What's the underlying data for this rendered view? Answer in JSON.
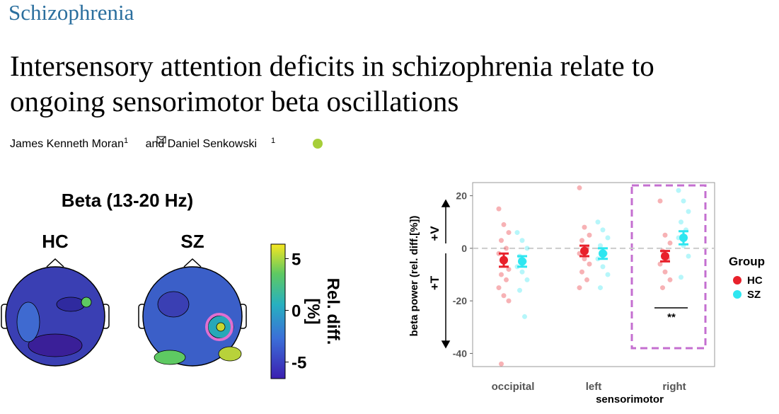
{
  "journal": "Schizophrenia",
  "title_lines": [
    "Intersensory attention deficits in schizophrenia relate to",
    "ongoing sensorimotor beta oscillations"
  ],
  "authors": [
    {
      "name": "James Kenneth Moran",
      "affiliation": "1"
    },
    {
      "name": "Daniel Senkowski",
      "affiliation": "1"
    }
  ],
  "author_connector": "and",
  "topomap": {
    "title": "Beta (13-20 Hz)",
    "panels": [
      "HC",
      "SZ"
    ],
    "colorbar": {
      "lim": [
        -6.6,
        6.4
      ],
      "ticks": [
        5,
        0,
        -5
      ],
      "label_lines": [
        "Rel. diff.",
        "[%]"
      ]
    }
  },
  "chart_data": {
    "type": "strip",
    "categories": [
      "occipital",
      "left",
      "right"
    ],
    "x_group_label": "sensorimotor",
    "y_label": "beta power (rel. diff.[%])",
    "ylim": [
      -45,
      25
    ],
    "yticks": [
      20,
      0,
      -20,
      -40
    ],
    "zero_line": true,
    "annotations": [
      "+V",
      "+T",
      "**"
    ],
    "legend_title": "Group",
    "series": [
      {
        "name": "HC",
        "color": "#e8212b",
        "values": [
          -4.5,
          -1,
          -3
        ],
        "errors": [
          2.5,
          2,
          2
        ],
        "points": [
          [
            15,
            9,
            6,
            3,
            0,
            -2,
            -5,
            -8,
            -10,
            -12,
            -15,
            -18,
            -20,
            -44
          ],
          [
            23,
            8,
            5,
            3,
            0,
            -2,
            -4,
            -6,
            -9,
            -12,
            -15
          ],
          [
            18,
            5,
            2,
            -1,
            -4,
            -6,
            -9,
            -12,
            -15
          ]
        ]
      },
      {
        "name": "SZ",
        "color": "#2ee6f0",
        "values": [
          -5,
          -2,
          4
        ],
        "errors": [
          2,
          2,
          2.5
        ],
        "points": [
          [
            6,
            3,
            0,
            -3,
            -5,
            -7,
            -9,
            -12,
            -16,
            -26
          ],
          [
            10,
            7,
            4,
            1,
            -2,
            -4,
            -7,
            -10,
            -15
          ],
          [
            22,
            18,
            14,
            10,
            7,
            4,
            1,
            -3,
            -11
          ]
        ]
      }
    ]
  }
}
